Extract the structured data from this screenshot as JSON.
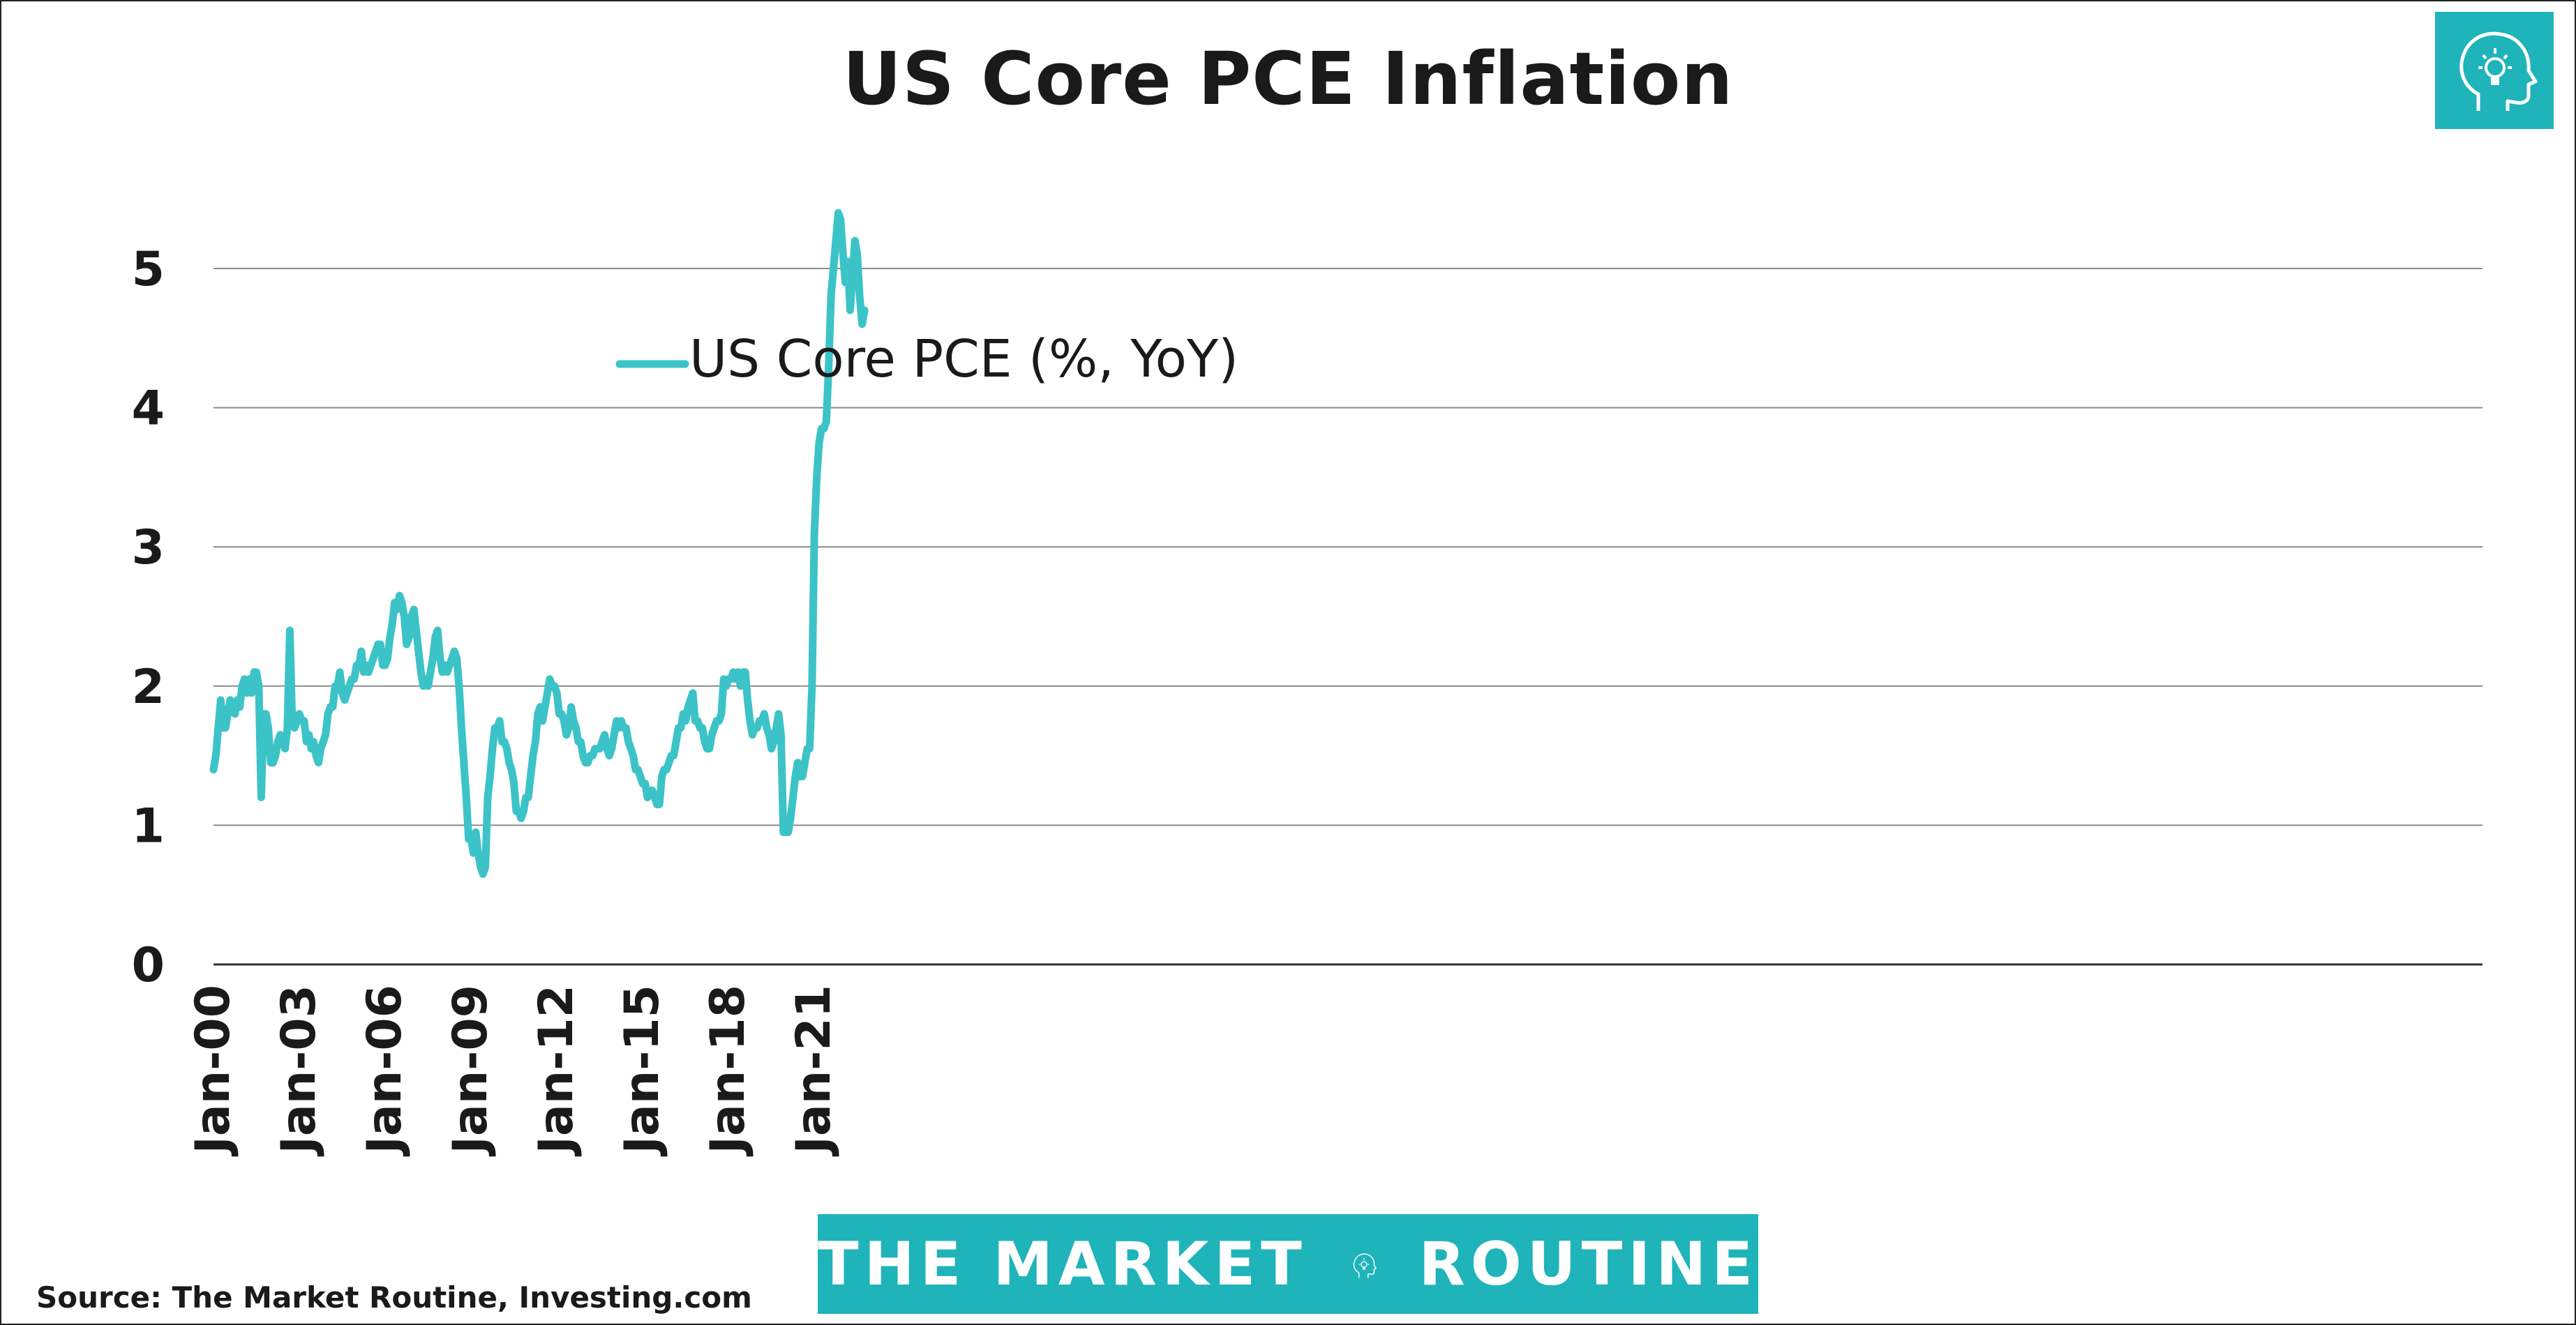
{
  "brand": {
    "banner_left": "THE MARKET",
    "banner_right": "ROUTINE",
    "logo_color": "#1fb3ba"
  },
  "source": "Source: The Market Routine, Investing.com",
  "chart_data": {
    "type": "line",
    "title": "US Core PCE Inflation",
    "xlabel": "",
    "ylabel": "",
    "ylim": [
      0,
      5.5
    ],
    "yticks": [
      "0",
      "1",
      "2",
      "3",
      "4",
      "5"
    ],
    "xticks": [
      "Jan-00",
      "Jan-03",
      "Jan-06",
      "Jan-09",
      "Jan-12",
      "Jan-15",
      "Jan-18",
      "Jan-21"
    ],
    "grid": true,
    "legend_position": "upper-left",
    "series": [
      {
        "name": "US Core PCE (%, YoY)",
        "color": "#3cc3c7",
        "x_start": "Jan-00",
        "frequency": "monthly",
        "values": [
          1.4,
          1.5,
          1.7,
          1.9,
          1.7,
          1.7,
          1.8,
          1.9,
          1.85,
          1.8,
          1.9,
          1.85,
          2.0,
          2.05,
          1.95,
          2.05,
          1.95,
          2.1,
          2.1,
          2.0,
          1.2,
          1.8,
          1.8,
          1.7,
          1.45,
          1.45,
          1.5,
          1.6,
          1.65,
          1.6,
          1.55,
          1.7,
          2.4,
          1.75,
          1.7,
          1.75,
          1.8,
          1.75,
          1.75,
          1.6,
          1.65,
          1.55,
          1.6,
          1.5,
          1.45,
          1.55,
          1.6,
          1.65,
          1.8,
          1.85,
          1.85,
          2.0,
          2.0,
          2.1,
          1.95,
          1.9,
          1.95,
          2.0,
          2.05,
          2.05,
          2.15,
          2.15,
          2.25,
          2.1,
          2.15,
          2.1,
          2.15,
          2.2,
          2.25,
          2.3,
          2.3,
          2.15,
          2.15,
          2.2,
          2.35,
          2.45,
          2.6,
          2.55,
          2.65,
          2.6,
          2.5,
          2.3,
          2.35,
          2.5,
          2.55,
          2.4,
          2.25,
          2.1,
          2.0,
          2.05,
          2.0,
          2.1,
          2.2,
          2.35,
          2.4,
          2.2,
          2.1,
          2.15,
          2.1,
          2.15,
          2.2,
          2.25,
          2.2,
          2.0,
          1.7,
          1.45,
          1.2,
          0.9,
          0.9,
          0.8,
          0.95,
          0.8,
          0.7,
          0.65,
          0.7,
          1.2,
          1.35,
          1.55,
          1.7,
          1.7,
          1.75,
          1.6,
          1.6,
          1.55,
          1.45,
          1.4,
          1.3,
          1.1,
          1.1,
          1.05,
          1.1,
          1.2,
          1.2,
          1.35,
          1.5,
          1.6,
          1.8,
          1.85,
          1.75,
          1.85,
          1.95,
          2.05,
          2.0,
          2.0,
          1.95,
          1.8,
          1.8,
          1.75,
          1.65,
          1.7,
          1.85,
          1.75,
          1.7,
          1.6,
          1.6,
          1.5,
          1.45,
          1.45,
          1.5,
          1.5,
          1.55,
          1.55,
          1.55,
          1.6,
          1.65,
          1.55,
          1.5,
          1.55,
          1.65,
          1.75,
          1.7,
          1.75,
          1.7,
          1.7,
          1.6,
          1.55,
          1.5,
          1.4,
          1.4,
          1.35,
          1.3,
          1.3,
          1.2,
          1.25,
          1.25,
          1.2,
          1.15,
          1.15,
          1.35,
          1.4,
          1.4,
          1.45,
          1.5,
          1.5,
          1.6,
          1.7,
          1.7,
          1.8,
          1.75,
          1.85,
          1.9,
          1.95,
          1.75,
          1.75,
          1.7,
          1.7,
          1.6,
          1.55,
          1.55,
          1.65,
          1.7,
          1.75,
          1.75,
          1.8,
          2.05,
          2.0,
          2.05,
          2.05,
          2.1,
          2.05,
          2.1,
          2.0,
          2.1,
          2.1,
          1.9,
          1.75,
          1.65,
          1.7,
          1.7,
          1.75,
          1.75,
          1.8,
          1.7,
          1.65,
          1.55,
          1.6,
          1.7,
          1.8,
          1.65,
          0.95,
          0.95,
          0.95,
          1.05,
          1.2,
          1.35,
          1.45,
          1.35,
          1.35,
          1.45,
          1.55,
          1.55,
          2.0,
          3.1,
          3.5,
          3.75,
          3.85,
          3.85,
          3.9,
          4.3,
          4.8,
          5.0,
          5.2,
          5.4,
          5.35,
          5.1,
          4.9,
          5.05,
          4.7,
          4.95,
          5.2,
          5.1,
          4.8,
          4.6,
          4.7
        ]
      }
    ]
  }
}
